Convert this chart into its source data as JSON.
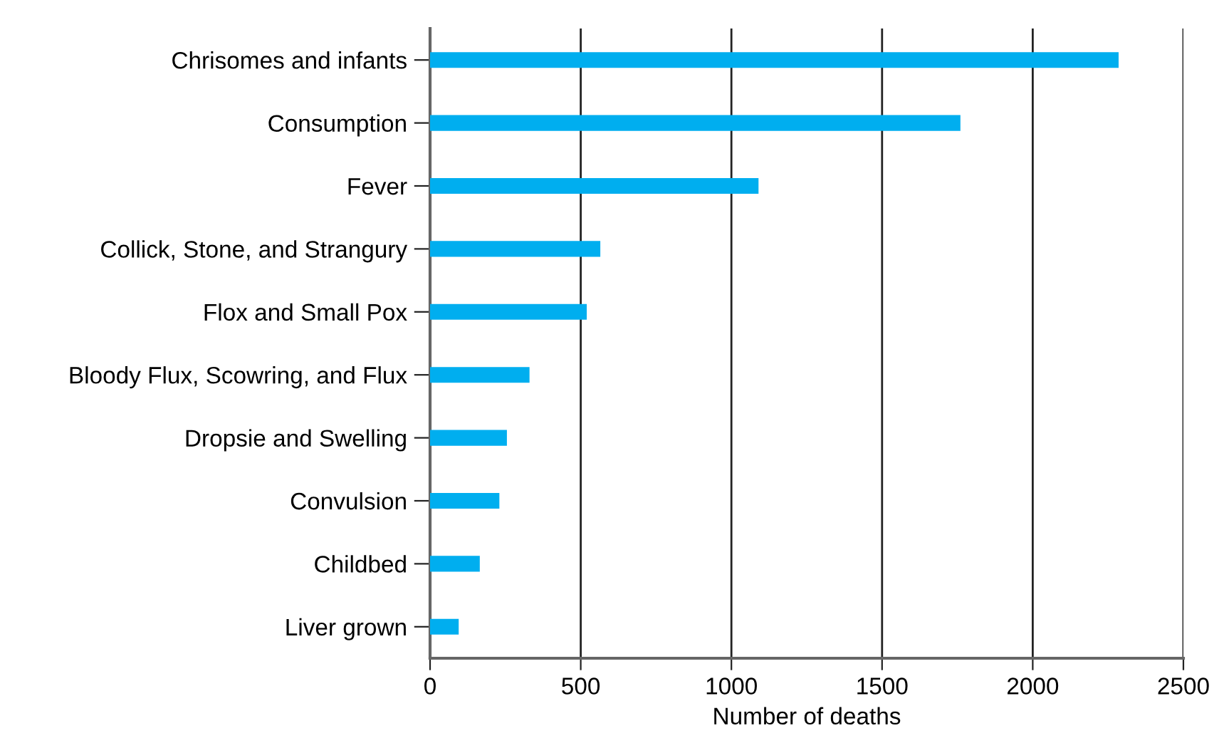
{
  "chart_data": {
    "type": "bar",
    "orientation": "horizontal",
    "xlabel": "Number of deaths",
    "categories": [
      "Chrisomes and infants",
      "Consumption",
      "Fever",
      "Collick, Stone, and Strangury",
      "Flox and Small Pox",
      "Bloody Flux, Scowring, and Flux",
      "Dropsie and Swelling",
      "Convulsion",
      "Childbed",
      "Liver grown"
    ],
    "values": [
      2285,
      1760,
      1090,
      565,
      520,
      330,
      255,
      230,
      165,
      95
    ],
    "color": "#00aeef",
    "xlim": [
      0,
      2500
    ],
    "xticks": [
      0,
      500,
      1000,
      1500,
      2000,
      2500
    ],
    "grid": "x"
  }
}
